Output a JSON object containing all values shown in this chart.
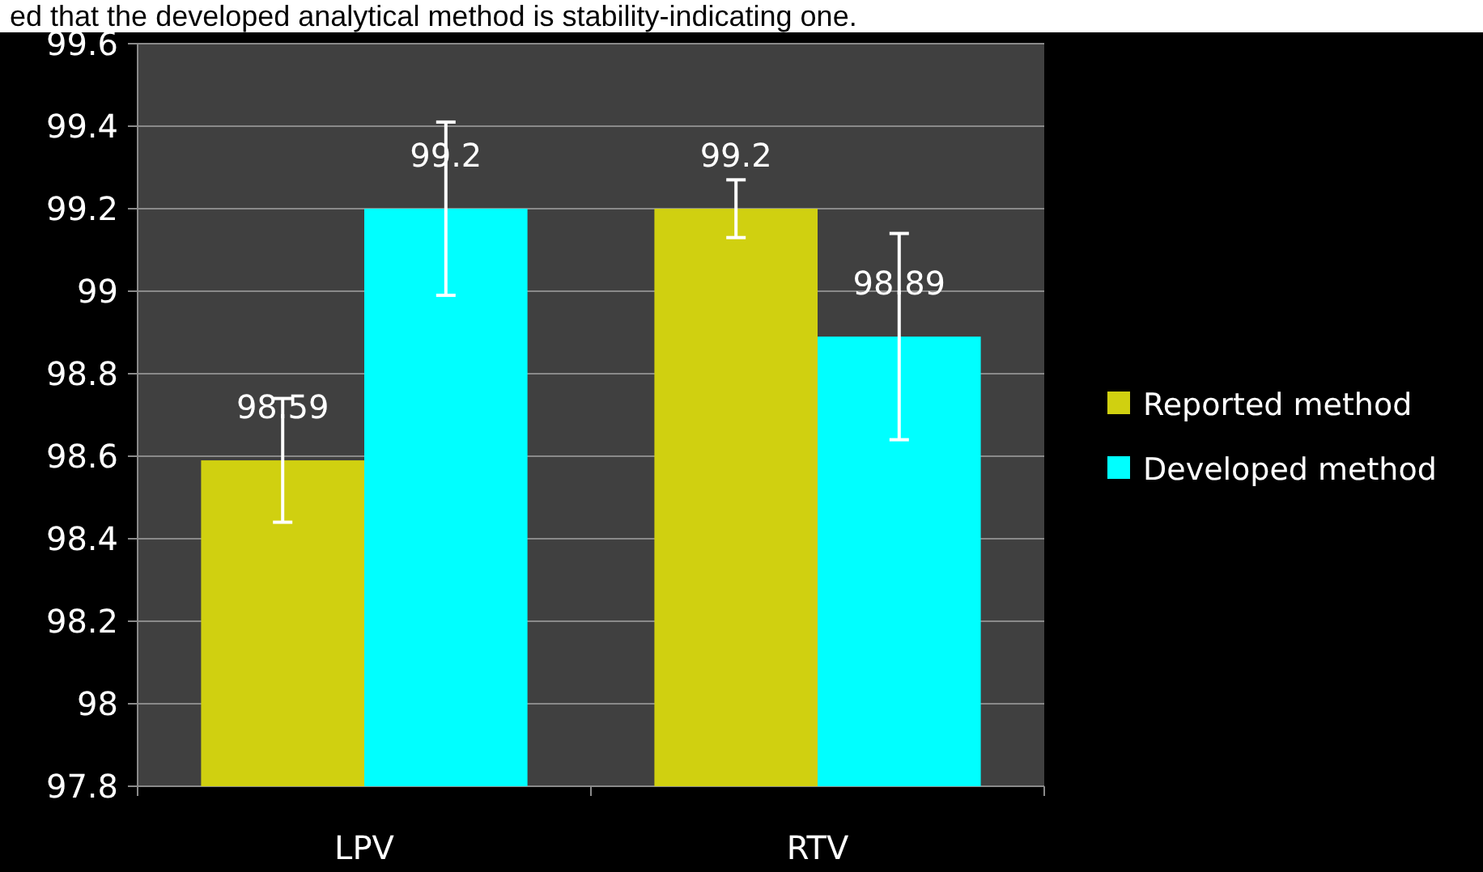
{
  "chart_data": {
    "type": "bar",
    "annotations": [
      "ed that the developed analytical method is stability-indicating one."
    ],
    "categories": [
      "LPV",
      "RTV"
    ],
    "series": [
      {
        "name": "Reported method",
        "color": "#d0d010",
        "values": [
          98.59,
          99.2
        ],
        "errors": [
          0.15,
          0.07
        ]
      },
      {
        "name": "Developed method",
        "color": "#00ffff",
        "values": [
          99.2,
          98.89
        ],
        "errors": [
          0.21,
          0.25
        ]
      }
    ],
    "ylim": [
      97.8,
      99.6
    ],
    "yticks": [
      97.8,
      98,
      98.2,
      98.4,
      98.6,
      98.8,
      99,
      99.2,
      99.4,
      99.6
    ],
    "grid": "y",
    "legend": "right",
    "data_labels": true
  }
}
